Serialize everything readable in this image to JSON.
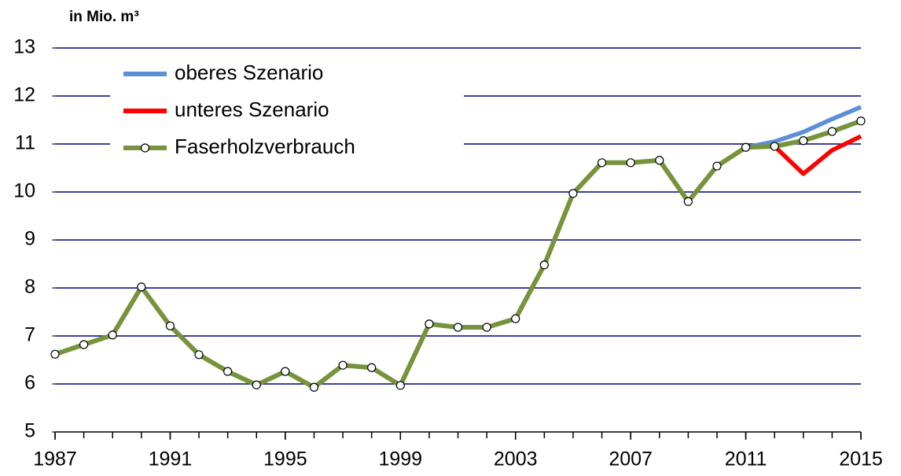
{
  "chart_data": {
    "type": "line",
    "ylabel": "in Mio. m³",
    "x": [
      1987,
      1988,
      1989,
      1990,
      1991,
      1992,
      1993,
      1994,
      1995,
      1996,
      1997,
      1998,
      1999,
      2000,
      2001,
      2002,
      2003,
      2004,
      2005,
      2006,
      2007,
      2008,
      2009,
      2010,
      2011,
      2012,
      2013,
      2014,
      2015
    ],
    "series": [
      {
        "name": "oberes Szenario",
        "color": "#5b8fd6",
        "values": [
          null,
          null,
          null,
          null,
          null,
          null,
          null,
          null,
          null,
          null,
          null,
          null,
          null,
          null,
          null,
          null,
          null,
          null,
          null,
          null,
          null,
          null,
          null,
          null,
          10.93,
          11.05,
          11.25,
          11.52,
          11.77
        ]
      },
      {
        "name": "unteres Szenario",
        "color": "#ff0000",
        "values": [
          null,
          null,
          null,
          null,
          null,
          null,
          null,
          null,
          null,
          null,
          null,
          null,
          null,
          null,
          null,
          null,
          null,
          null,
          null,
          null,
          null,
          null,
          null,
          null,
          10.93,
          10.95,
          10.38,
          10.87,
          11.16
        ]
      },
      {
        "name": "Faserholzverbrauch",
        "color": "#77933c",
        "markers": true,
        "values": [
          6.62,
          6.82,
          7.02,
          8.02,
          7.21,
          6.61,
          6.26,
          5.98,
          6.26,
          5.93,
          6.39,
          6.34,
          5.97,
          7.25,
          7.18,
          7.18,
          7.36,
          8.48,
          9.97,
          10.61,
          10.61,
          10.66,
          9.8,
          10.54,
          10.93,
          10.95,
          11.07,
          11.26,
          11.48
        ]
      }
    ],
    "xlim": [
      1987,
      2015
    ],
    "xticks": [
      1987,
      1991,
      1995,
      1999,
      2003,
      2007,
      2011,
      2015
    ],
    "ylim": [
      5,
      13
    ],
    "yticks": [
      5,
      6,
      7,
      8,
      9,
      10,
      11,
      12,
      13
    ],
    "grid": true,
    "grid_color": "#000080",
    "legend": "upper left"
  }
}
